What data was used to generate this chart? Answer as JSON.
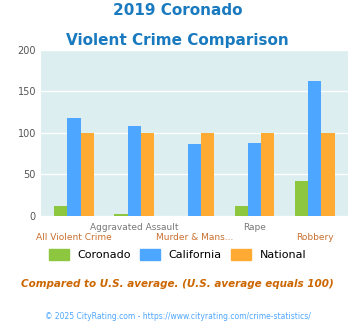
{
  "title_line1": "2019 Coronado",
  "title_line2": "Violent Crime Comparison",
  "categories": [
    "All Violent Crime",
    "Aggravated Assault",
    "Murder & Mans...",
    "Rape",
    "Robbery"
  ],
  "cat_labels_top": [
    "",
    "Aggravated Assault",
    "",
    "Rape",
    ""
  ],
  "cat_labels_bot": [
    "All Violent Crime",
    "",
    "Murder & Mans...",
    "",
    "Robbery"
  ],
  "coronado": [
    12,
    3,
    0,
    12,
    42
  ],
  "california": [
    118,
    108,
    87,
    88,
    162
  ],
  "national": [
    100,
    100,
    100,
    100,
    100
  ],
  "colors": {
    "coronado": "#8dc63f",
    "california": "#4da6ff",
    "national": "#ffaa33"
  },
  "ylim": [
    0,
    200
  ],
  "yticks": [
    0,
    50,
    100,
    150,
    200
  ],
  "bg_color": "#ddeef0",
  "title_color": "#1a7abf",
  "subtitle_note": "Compared to U.S. average. (U.S. average equals 100)",
  "copyright": "© 2025 CityRating.com - https://www.cityrating.com/crime-statistics/",
  "legend_labels": [
    "Coronado",
    "California",
    "National"
  ],
  "bar_width": 0.22
}
